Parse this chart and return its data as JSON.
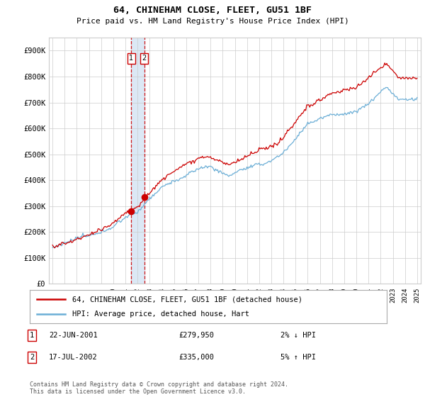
{
  "title": "64, CHINEHAM CLOSE, FLEET, GU51 1BF",
  "subtitle": "Price paid vs. HM Land Registry's House Price Index (HPI)",
  "ylim": [
    0,
    950000
  ],
  "yticks": [
    0,
    100000,
    200000,
    300000,
    400000,
    500000,
    600000,
    700000,
    800000,
    900000
  ],
  "ytick_labels": [
    "£0",
    "£100K",
    "£200K",
    "£300K",
    "£400K",
    "£500K",
    "£600K",
    "£700K",
    "£800K",
    "£900K"
  ],
  "hpi_color": "#6baed6",
  "price_color": "#cc0000",
  "marker_color": "#cc0000",
  "bg_color": "#ffffff",
  "grid_color": "#cccccc",
  "legend_box_color": "#cc0000",
  "band_color": "#dce8f5",
  "transactions": [
    {
      "num": 1,
      "date": "22-JUN-2001",
      "price": 279950,
      "pct": "2%",
      "dir": "↓",
      "x": 2001.47
    },
    {
      "num": 2,
      "date": "17-JUL-2002",
      "price": 335000,
      "pct": "5%",
      "dir": "↑",
      "x": 2002.54
    }
  ],
  "dashed_line_color": "#cc0000",
  "copyright_text": "Contains HM Land Registry data © Crown copyright and database right 2024.\nThis data is licensed under the Open Government Licence v3.0.",
  "legend_label_price": "64, CHINEHAM CLOSE, FLEET, GU51 1BF (detached house)",
  "legend_label_hpi": "HPI: Average price, detached house, Hart",
  "xmin": 1994.7,
  "xmax": 2025.3
}
